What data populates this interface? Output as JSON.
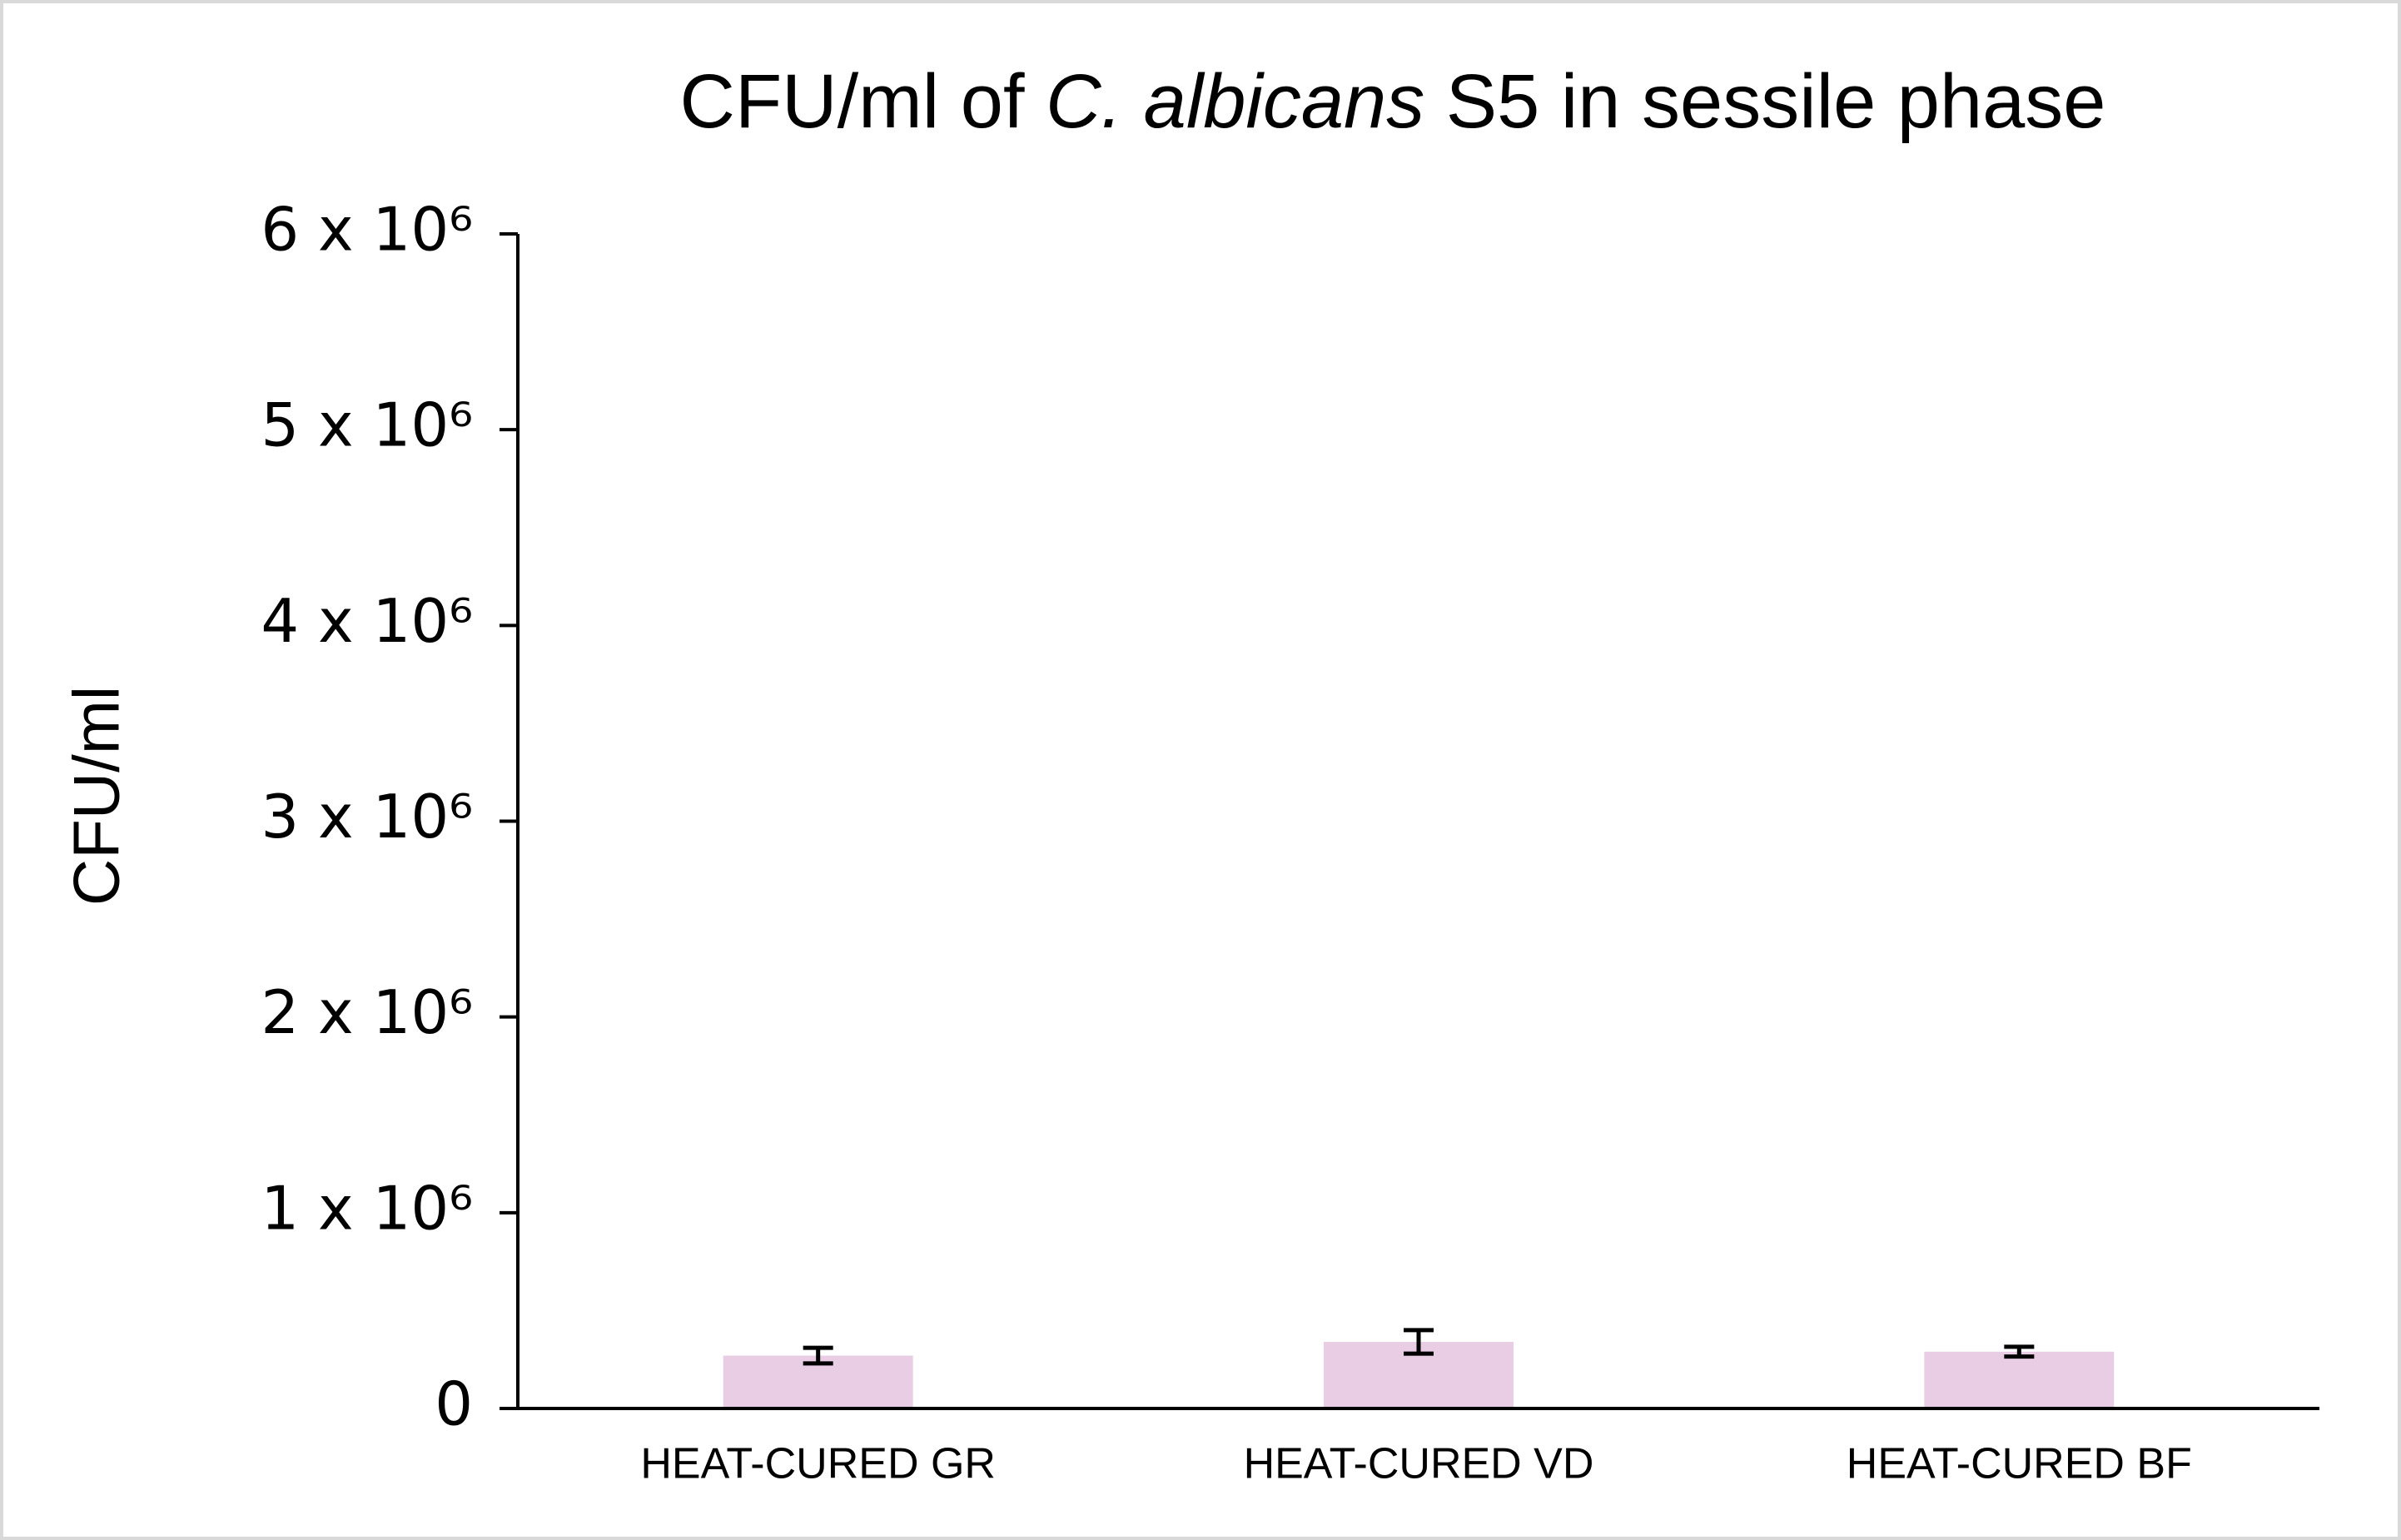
{
  "chart_data": {
    "type": "bar",
    "title": [
      "CFU/ml of",
      "C. albicans",
      "S5 in sessile phase"
    ],
    "ylabel": "CFU/ml",
    "categories": [
      "HEAT-CURED GR",
      "HEAT-CURED VD",
      "HEAT-CURED BF"
    ],
    "values": [
      270000,
      340000,
      290000
    ],
    "errors": [
      40000,
      60000,
      25000
    ],
    "color": "#e8cde4",
    "ylim": [
      0,
      6000000
    ],
    "yticks": [
      0,
      {
        "value": 1000000,
        "label": "1 x 10⁶"
      },
      {
        "value": 2000000,
        "label": "2 x 10⁶"
      },
      {
        "value": 3000000,
        "label": "3 x 10⁶"
      },
      {
        "value": 4000000,
        "label": "4 x 10⁶"
      },
      {
        "value": 5000000,
        "label": "5 x 10⁶"
      },
      {
        "value": 6000000,
        "label": "6 x 10⁶"
      }
    ],
    "grid": false
  }
}
